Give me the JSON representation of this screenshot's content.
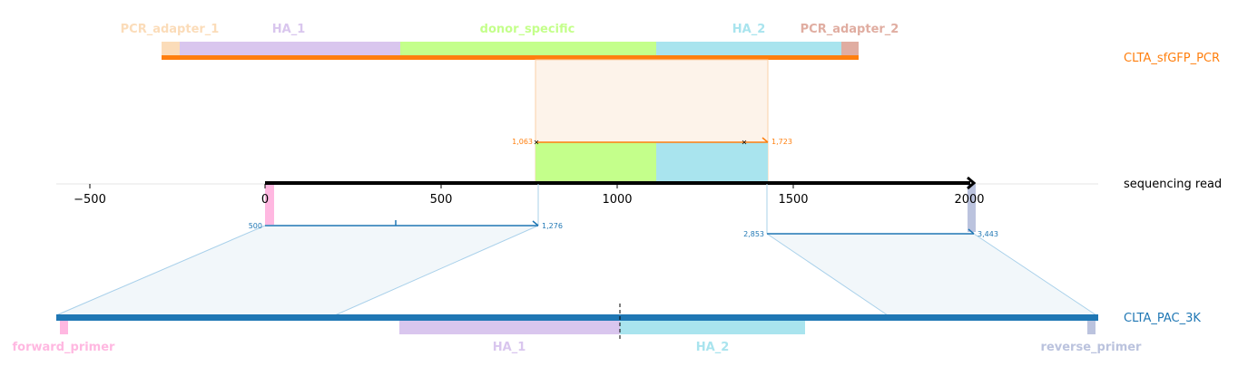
{
  "read": {
    "name": "sequencing read",
    "length": 2020,
    "color": "#000000",
    "features": [
      {
        "name": "forward_primer",
        "start": 0,
        "end": 23,
        "color": "#FFB8E1"
      },
      {
        "name": "donor_specific",
        "start": 770,
        "end": 1113,
        "color": "#C4FF8B"
      },
      {
        "name": "HA_2",
        "start": 1113,
        "end": 1430,
        "color": "#A9E4EE"
      },
      {
        "name": "reverse_primer",
        "start": 1998,
        "end": 2020,
        "color": "#BBC3DE"
      }
    ]
  },
  "axis": {
    "ticks": [
      {
        "value": -500,
        "label": "−500"
      },
      {
        "value": 0,
        "label": "0"
      },
      {
        "value": 500,
        "label": "500"
      },
      {
        "value": 1000,
        "label": "1000"
      },
      {
        "value": 1500,
        "label": "1500"
      },
      {
        "value": 2000,
        "label": "2000"
      }
    ]
  },
  "top_ref": {
    "name": "CLTA_sfGFP_PCR",
    "color": "#FF7F0E",
    "features": [
      {
        "name": "PCR_adapter_1",
        "color": "#FBDCB9"
      },
      {
        "name": "HA_1",
        "color": "#D9C6EE"
      },
      {
        "name": "donor_specific",
        "color": "#C4FF8B"
      },
      {
        "name": "HA_2",
        "color": "#A9E4EE"
      },
      {
        "name": "PCR_adapter_2",
        "color": "#E0ADA1"
      }
    ],
    "alignment": {
      "ref_start_label": "1,063",
      "ref_end_label": "1,723"
    }
  },
  "bottom_ref": {
    "name": "CLTA_PAC_3K",
    "color": "#1F77B4",
    "features": [
      {
        "name": "forward_primer",
        "color": "#FFB8E1"
      },
      {
        "name": "HA_1",
        "color": "#D9C6EE"
      },
      {
        "name": "HA_2",
        "color": "#A9E4EE"
      },
      {
        "name": "reverse_primer",
        "color": "#BBC3DE"
      }
    ],
    "alignments": [
      {
        "start_label": "500",
        "end_label": "1,276"
      },
      {
        "start_label": "2,853",
        "end_label": "3,443"
      }
    ]
  }
}
